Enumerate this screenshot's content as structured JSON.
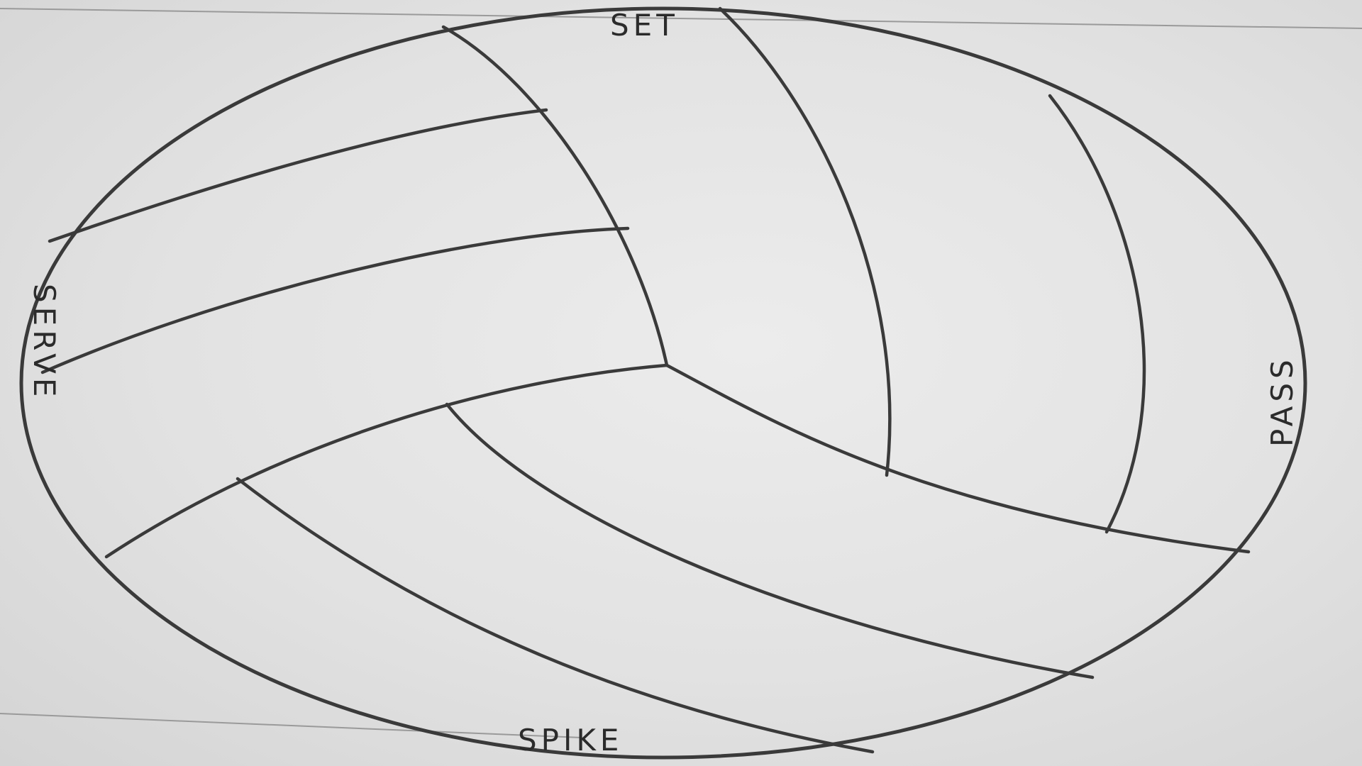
{
  "drawing": {
    "subject": "volleyball",
    "medium": "pencil on paper",
    "labels": {
      "top": "SET",
      "left": "SERVE",
      "right": "PASS",
      "bottom": "SPIKE"
    },
    "colors": {
      "paper": "#e4e4e4",
      "pencil": "#3a3a3a"
    }
  }
}
